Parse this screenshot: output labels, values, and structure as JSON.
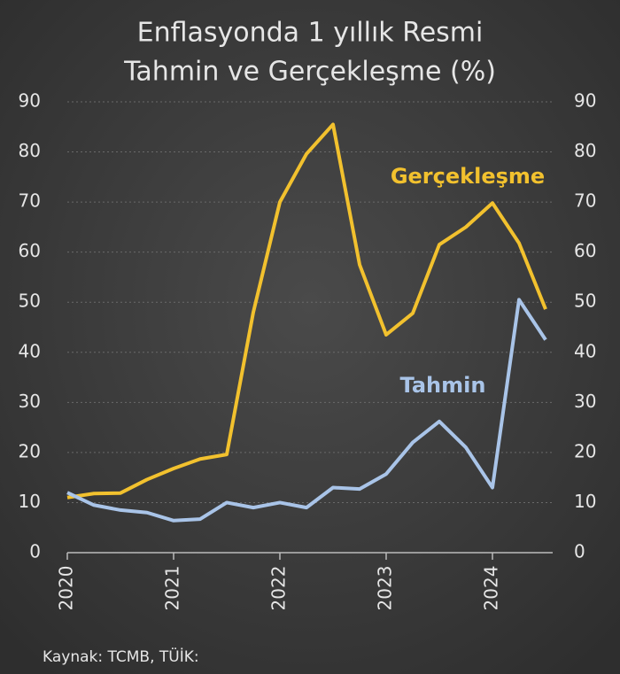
{
  "chart_data": {
    "type": "line",
    "title": [
      "Enflasyonda 1 yıllık Resmi",
      "Tahmin ve Gerçekleşme (%)"
    ],
    "source": "Kaynak: TCMB, TÜİK:",
    "x": [
      2020,
      2020.25,
      2020.5,
      2020.75,
      2021,
      2021.25,
      2021.5,
      2021.75,
      2022,
      2022.25,
      2022.5,
      2022.75,
      2023,
      2023.25,
      2023.5,
      2023.75,
      2024,
      2024.25,
      2024.5
    ],
    "series": [
      {
        "name": "Gerçekleşme",
        "color": "#f2c12e",
        "values": [
          11,
          11.8,
          11.9,
          14.6,
          16.8,
          18.7,
          19.6,
          48,
          70,
          79.6,
          85.5,
          57.5,
          43.5,
          47.8,
          61.5,
          65,
          69.8,
          61.8,
          48.6
        ]
      },
      {
        "name": "Tahmin",
        "color": "#a9c4e8",
        "values": [
          12,
          9.5,
          8.5,
          8,
          6.4,
          6.7,
          10,
          9,
          10,
          9,
          13,
          12.7,
          15.7,
          22,
          26.2,
          21,
          13,
          50.5,
          42.5
        ]
      }
    ],
    "xlim": [
      2020,
      2024.5
    ],
    "xticks": [
      2020,
      2021,
      2022,
      2023,
      2024
    ],
    "ylim": [
      0,
      90
    ],
    "yticks": [
      0,
      10,
      20,
      30,
      40,
      50,
      60,
      70,
      80,
      90
    ],
    "y2lim": [
      0,
      90
    ],
    "y2ticks": [
      0,
      10,
      20,
      30,
      40,
      50,
      60,
      70,
      80,
      90
    ],
    "grid": true
  }
}
